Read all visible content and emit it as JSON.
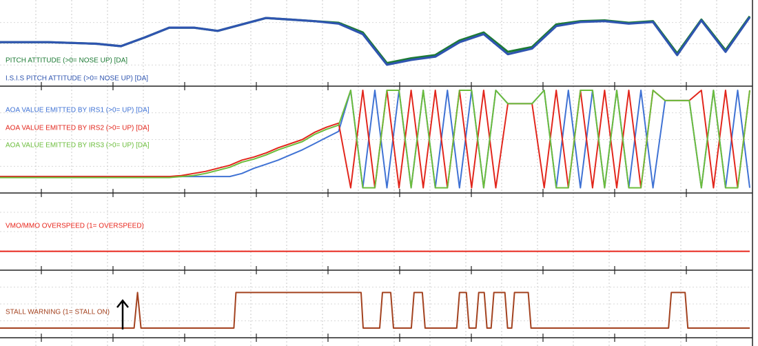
{
  "chart_data": [
    {
      "type": "line",
      "ylim": [
        0,
        100
      ],
      "grid": true,
      "series": [
        {
          "name": "PITCH ATTITUDE  (>0= NOSE UP) [DA]",
          "color": "#1c7a34",
          "values": [
            52,
            52,
            52,
            51,
            50,
            47,
            58,
            70,
            70,
            66,
            74,
            82,
            80,
            78,
            76,
            64,
            26,
            32,
            36,
            54,
            64,
            40,
            46,
            74,
            78,
            79,
            76,
            78,
            38,
            80,
            42,
            84
          ]
        },
        {
          "name": "I.S.I.S PITCH ATTITUDE (>0= NOSE UP) [DA]",
          "color": "#2f55b0",
          "values": [
            52,
            52,
            52,
            51,
            50,
            47,
            58,
            70,
            70,
            66,
            74,
            82,
            80,
            78,
            75,
            62,
            24,
            30,
            34,
            52,
            62,
            37,
            44,
            72,
            77,
            78,
            75,
            77,
            36,
            79,
            40,
            83
          ]
        }
      ]
    },
    {
      "type": "line",
      "ylim": [
        0,
        100
      ],
      "grid": true,
      "series": [
        {
          "name": "AOA VALUE EMITTED BY IRS1 (>0= UP) [DA]",
          "color": "#3f72d4",
          "values": [
            14,
            14,
            14,
            14,
            14,
            14,
            14,
            14,
            14,
            14,
            14,
            14,
            14,
            14,
            14,
            14,
            14,
            14,
            14,
            14,
            17,
            22,
            26,
            30,
            35,
            40,
            46,
            52,
            58,
            98,
            3,
            98,
            3,
            98,
            3,
            98,
            3,
            98,
            3,
            98,
            3,
            98,
            85,
            85,
            85,
            98,
            3,
            98,
            3,
            98,
            3,
            98,
            3,
            98,
            3,
            88,
            88,
            88,
            3,
            98,
            3,
            98,
            3
          ]
        },
        {
          "name": "AOA VALUE EMITTED BY IRS2 (>0= UP) [DA]",
          "color": "#e2261c",
          "values": [
            14,
            14,
            14,
            14,
            14,
            14,
            14,
            14,
            14,
            14,
            14,
            14,
            14,
            14,
            14,
            15,
            17,
            19,
            22,
            25,
            30,
            33,
            37,
            42,
            46,
            50,
            57,
            62,
            66,
            3,
            98,
            3,
            98,
            3,
            98,
            3,
            98,
            3,
            98,
            3,
            98,
            3,
            85,
            85,
            85,
            3,
            98,
            3,
            98,
            3,
            98,
            3,
            98,
            3,
            98,
            88,
            88,
            88,
            98,
            3,
            98,
            3,
            98
          ]
        },
        {
          "name": "AOA VALUE EMITTED BY IRS3 (>0= UP) [DA]",
          "color": "#6cbd3c",
          "values": [
            13,
            13,
            13,
            13,
            13,
            13,
            13,
            13,
            13,
            13,
            13,
            13,
            13,
            13,
            13,
            14,
            15,
            17,
            20,
            23,
            28,
            31,
            35,
            40,
            44,
            48,
            55,
            60,
            64,
            98,
            3,
            3,
            98,
            98,
            3,
            98,
            3,
            3,
            98,
            98,
            3,
            98,
            85,
            85,
            85,
            98,
            3,
            3,
            98,
            98,
            3,
            98,
            3,
            3,
            98,
            88,
            88,
            88,
            3,
            98,
            3,
            3,
            98
          ]
        }
      ]
    },
    {
      "type": "line",
      "ylim": [
        0,
        100
      ],
      "grid": true,
      "series": [
        {
          "name": "VMO/MMO OVERSPEED (1= OVERSPEED)",
          "color": "#e8261c",
          "values": [
            23,
            23
          ]
        }
      ]
    },
    {
      "type": "line",
      "ylim": [
        0,
        100
      ],
      "xlim": [
        0,
        1090
      ],
      "grid": true,
      "x": [
        0,
        195,
        200,
        205,
        340,
        343,
        525,
        528,
        552,
        556,
        568,
        572,
        598,
        602,
        614,
        618,
        664,
        668,
        678,
        682,
        692,
        696,
        704,
        708,
        714,
        718,
        734,
        738,
        744,
        748,
        768,
        772,
        972,
        976,
        996,
        1000,
        1090
      ],
      "series": [
        {
          "name": "STALL WARNING (1= STALL ON)",
          "color": "#a3421f",
          "values": [
            12,
            12,
            68,
            12,
            12,
            68,
            68,
            12,
            12,
            68,
            68,
            12,
            12,
            68,
            68,
            12,
            12,
            68,
            68,
            12,
            12,
            68,
            68,
            12,
            12,
            68,
            68,
            12,
            12,
            68,
            68,
            12,
            12,
            68,
            68,
            12,
            12
          ]
        }
      ]
    }
  ]
}
